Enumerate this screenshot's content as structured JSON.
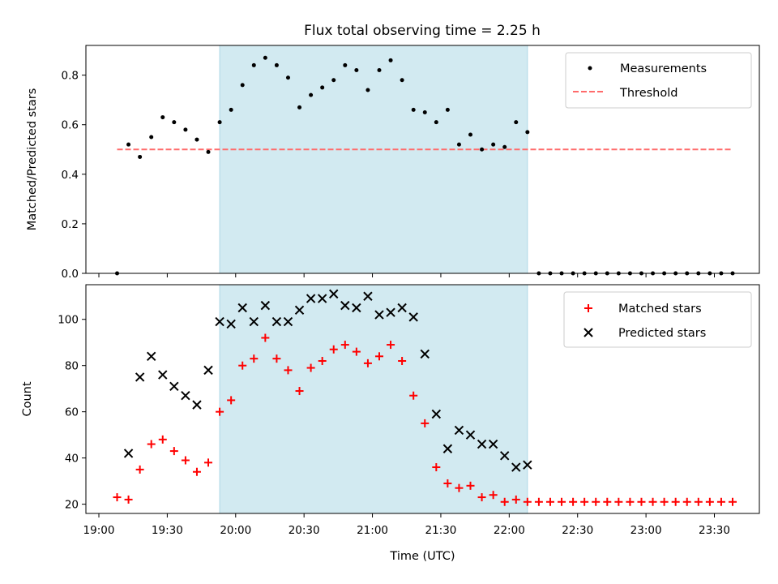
{
  "title": "Flux total observing time = 2.25 h",
  "colors": {
    "shade": "#add8e6",
    "threshold": "#ff6b6b",
    "matched": "#ff0000",
    "predicted": "#000000",
    "measurements": "#000000"
  },
  "chart_data": [
    {
      "type": "scatter",
      "panel": "top",
      "ylabel": "Matched/Predicted stars",
      "xlabel": "",
      "ylim": [
        0,
        0.92
      ],
      "yticks": [
        0.0,
        0.2,
        0.4,
        0.6,
        0.8
      ],
      "ytick_labels": [
        "0.0",
        "0.2",
        "0.4",
        "0.6",
        "0.8"
      ],
      "shaded_span": [
        "19:53",
        "22:08"
      ],
      "legend": {
        "position": "top-right",
        "entries": [
          "Measurements",
          "Threshold"
        ]
      },
      "series": [
        {
          "name": "Measurements",
          "marker": "dot",
          "x": [
            "19:08",
            "19:13",
            "19:18",
            "19:23",
            "19:28",
            "19:33",
            "19:38",
            "19:43",
            "19:48",
            "19:53",
            "19:58",
            "20:03",
            "20:08",
            "20:13",
            "20:18",
            "20:23",
            "20:28",
            "20:33",
            "20:38",
            "20:43",
            "20:48",
            "20:53",
            "20:58",
            "21:03",
            "21:08",
            "21:13",
            "21:18",
            "21:23",
            "21:28",
            "21:33",
            "21:38",
            "21:43",
            "21:48",
            "21:53",
            "21:58",
            "22:03",
            "22:08",
            "22:13",
            "22:18",
            "22:23",
            "22:28",
            "22:33",
            "22:38",
            "22:43",
            "22:48",
            "22:53",
            "22:58",
            "23:03",
            "23:08",
            "23:13",
            "23:18",
            "23:23",
            "23:28",
            "23:33",
            "23:38"
          ],
          "y": [
            0.0,
            0.52,
            0.47,
            0.55,
            0.63,
            0.61,
            0.58,
            0.54,
            0.49,
            0.61,
            0.66,
            0.76,
            0.84,
            0.87,
            0.84,
            0.79,
            0.67,
            0.72,
            0.75,
            0.78,
            0.84,
            0.82,
            0.74,
            0.82,
            0.86,
            0.78,
            0.66,
            0.65,
            0.61,
            0.66,
            0.52,
            0.56,
            0.5,
            0.52,
            0.51,
            0.61,
            0.57,
            0.0,
            0.0,
            0.0,
            0.0,
            0.0,
            0.0,
            0.0,
            0.0,
            0.0,
            0.0,
            0.0,
            0.0,
            0.0,
            0.0,
            0.0,
            0.0,
            0.0,
            0.0
          ]
        },
        {
          "name": "Threshold",
          "style": "dashed",
          "x": [
            "19:08",
            "23:38"
          ],
          "y": [
            0.5,
            0.5
          ]
        }
      ]
    },
    {
      "type": "scatter",
      "panel": "bottom",
      "ylabel": "Count",
      "xlabel": "Time (UTC)",
      "ylim": [
        16,
        115
      ],
      "yticks": [
        20,
        40,
        60,
        80,
        100
      ],
      "ytick_labels": [
        "20",
        "40",
        "60",
        "80",
        "100"
      ],
      "xlim": [
        "19:00",
        "23:38"
      ],
      "xticks": [
        "19:00",
        "19:30",
        "20:00",
        "20:30",
        "21:00",
        "21:30",
        "22:00",
        "22:30",
        "23:00",
        "23:30"
      ],
      "xtick_labels": [
        "19:00",
        "19:30",
        "20:00",
        "20:30",
        "21:00",
        "21:30",
        "22:00",
        "22:30",
        "23:00",
        "23:30"
      ],
      "shaded_span": [
        "19:53",
        "22:08"
      ],
      "legend": {
        "position": "top-right",
        "entries": [
          "Matched stars",
          "Predicted stars"
        ]
      },
      "series": [
        {
          "name": "Matched stars",
          "marker": "plus",
          "x": [
            "19:08",
            "19:13",
            "19:18",
            "19:23",
            "19:28",
            "19:33",
            "19:38",
            "19:43",
            "19:48",
            "19:53",
            "19:58",
            "20:03",
            "20:08",
            "20:13",
            "20:18",
            "20:23",
            "20:28",
            "20:33",
            "20:38",
            "20:43",
            "20:48",
            "20:53",
            "20:58",
            "21:03",
            "21:08",
            "21:13",
            "21:18",
            "21:23",
            "21:28",
            "21:33",
            "21:38",
            "21:43",
            "21:48",
            "21:53",
            "21:58",
            "22:03",
            "22:08",
            "22:13",
            "22:18",
            "22:23",
            "22:28",
            "22:33",
            "22:38",
            "22:43",
            "22:48",
            "22:53",
            "22:58",
            "23:03",
            "23:08",
            "23:13",
            "23:18",
            "23:23",
            "23:28",
            "23:33",
            "23:38"
          ],
          "y": [
            23,
            22,
            35,
            46,
            48,
            43,
            39,
            34,
            38,
            60,
            65,
            80,
            83,
            92,
            83,
            78,
            69,
            79,
            82,
            87,
            89,
            86,
            81,
            84,
            89,
            82,
            67,
            55,
            36,
            29,
            27,
            28,
            23,
            24,
            21,
            22,
            21,
            21,
            21,
            21,
            21,
            21,
            21,
            21,
            21,
            21,
            21,
            21,
            21,
            21,
            21,
            21,
            21,
            21,
            21
          ]
        },
        {
          "name": "Predicted stars",
          "marker": "x",
          "x": [
            "19:13",
            "19:18",
            "19:23",
            "19:28",
            "19:33",
            "19:38",
            "19:43",
            "19:48",
            "19:53",
            "19:58",
            "20:03",
            "20:08",
            "20:13",
            "20:18",
            "20:23",
            "20:28",
            "20:33",
            "20:38",
            "20:43",
            "20:48",
            "20:53",
            "20:58",
            "21:03",
            "21:08",
            "21:13",
            "21:18",
            "21:23",
            "21:28",
            "21:33",
            "21:38",
            "21:43",
            "21:48",
            "21:53",
            "21:58",
            "22:03",
            "22:08"
          ],
          "y": [
            42,
            75,
            84,
            76,
            71,
            67,
            63,
            78,
            99,
            98,
            105,
            99,
            106,
            99,
            99,
            104,
            109,
            109,
            111,
            106,
            105,
            110,
            102,
            103,
            105,
            101,
            85,
            59,
            44,
            52,
            50,
            46,
            46,
            41,
            36,
            37
          ]
        }
      ]
    }
  ]
}
